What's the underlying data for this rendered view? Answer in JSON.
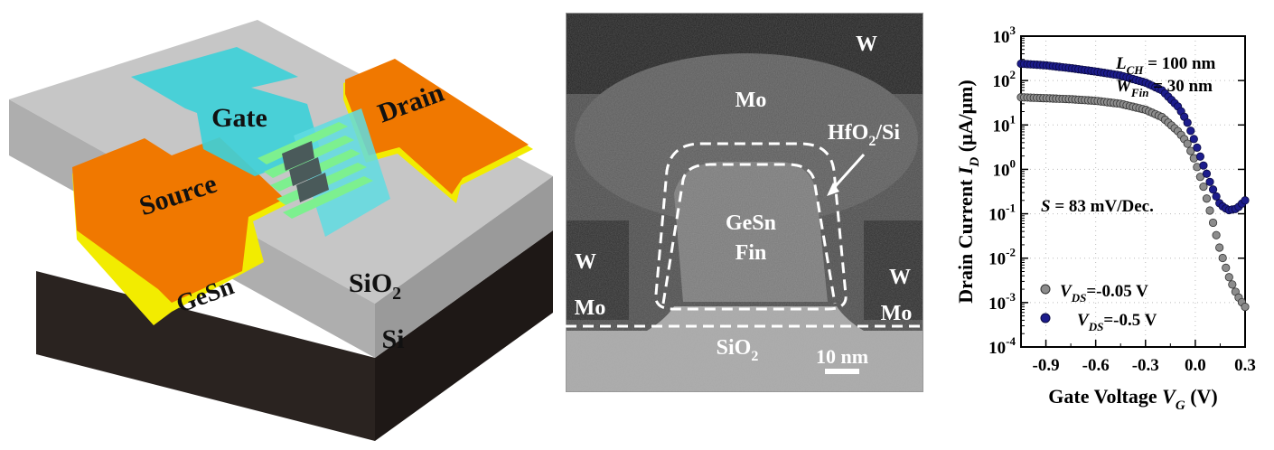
{
  "device": {
    "labels": {
      "gate": "Gate",
      "drain": "Drain",
      "source": "Source",
      "gesn": "GeSn",
      "sio2_base": "SiO",
      "sio2_sub": "2",
      "si": "Si"
    },
    "colors": {
      "pad_orange": "#F07800",
      "gesn_yellow": "#F2EC00",
      "gate_cyan": "#3ED0D8",
      "fin_green": "#7DF08F",
      "oxide_gray": "#C8C8C8",
      "substrate_dark": "#2B2422"
    }
  },
  "tem": {
    "labels": {
      "w_top": "W",
      "mo_top": "Mo",
      "hfo2_pre": "HfO",
      "hfo2_sub": "2",
      "hfo2_post": "/Si",
      "gesn": "GeSn",
      "fin": "Fin",
      "w_left": "W",
      "w_right": "W",
      "mo_left": "Mo",
      "mo_right": "Mo",
      "sio2_base": "SiO",
      "sio2_sub": "2",
      "scale": "10 nm"
    }
  },
  "chart_data": {
    "type": "scatter",
    "y_scale": "log",
    "xlim": [
      -1.05,
      0.3
    ],
    "ylim": [
      0.0001,
      1000
    ],
    "x_ticks": [
      "-0.9",
      "-0.6",
      "-0.3",
      "0.0",
      "0.3"
    ],
    "x_tick_values": [
      -0.9,
      -0.6,
      -0.3,
      0.0,
      0.3
    ],
    "y_tick_exponents": [
      -4,
      -3,
      -2,
      -1,
      0,
      1,
      2,
      3
    ],
    "grid": true,
    "xlabel": {
      "text": "Gate Voltage ",
      "italic": "V",
      "sub": "G",
      "unit": " (V)"
    },
    "ylabel": {
      "text": "Drain Current ",
      "italic": "I",
      "sub": "D",
      "unit": " (μA/μm)"
    },
    "annotations": {
      "lch_italic": "L",
      "lch_sub": "CH",
      "lch_value": " = 100 nm",
      "wfin_italic": "W",
      "wfin_sub": "Fin",
      "wfin_value": " = 30 nm",
      "ss_italic": "S",
      "ss_value": " = 83 mV/Dec."
    },
    "series": [
      {
        "name_italic": "V",
        "name_sub": "DS",
        "name_value": "=-0.05 V",
        "color": "#8C8C8C",
        "x": [
          -1.05,
          -0.9,
          -0.75,
          -0.6,
          -0.45,
          -0.3,
          -0.2,
          -0.1,
          -0.05,
          0.0,
          0.05,
          0.1,
          0.15,
          0.2,
          0.25,
          0.3
        ],
        "y": [
          42,
          40,
          38,
          35,
          30,
          22,
          15,
          7,
          4,
          1.5,
          0.4,
          0.08,
          0.015,
          0.004,
          0.0015,
          0.0008
        ]
      },
      {
        "name_italic": "V",
        "name_sub": "DS",
        "name_value": "=-0.5 V",
        "color": "#1C1C8C",
        "x": [
          -1.05,
          -0.9,
          -0.75,
          -0.6,
          -0.45,
          -0.3,
          -0.2,
          -0.1,
          -0.05,
          0.0,
          0.05,
          0.1,
          0.15,
          0.2,
          0.25,
          0.3
        ],
        "y": [
          240,
          220,
          190,
          160,
          130,
          90,
          60,
          25,
          12,
          4,
          1.2,
          0.4,
          0.16,
          0.12,
          0.13,
          0.2
        ]
      }
    ]
  }
}
